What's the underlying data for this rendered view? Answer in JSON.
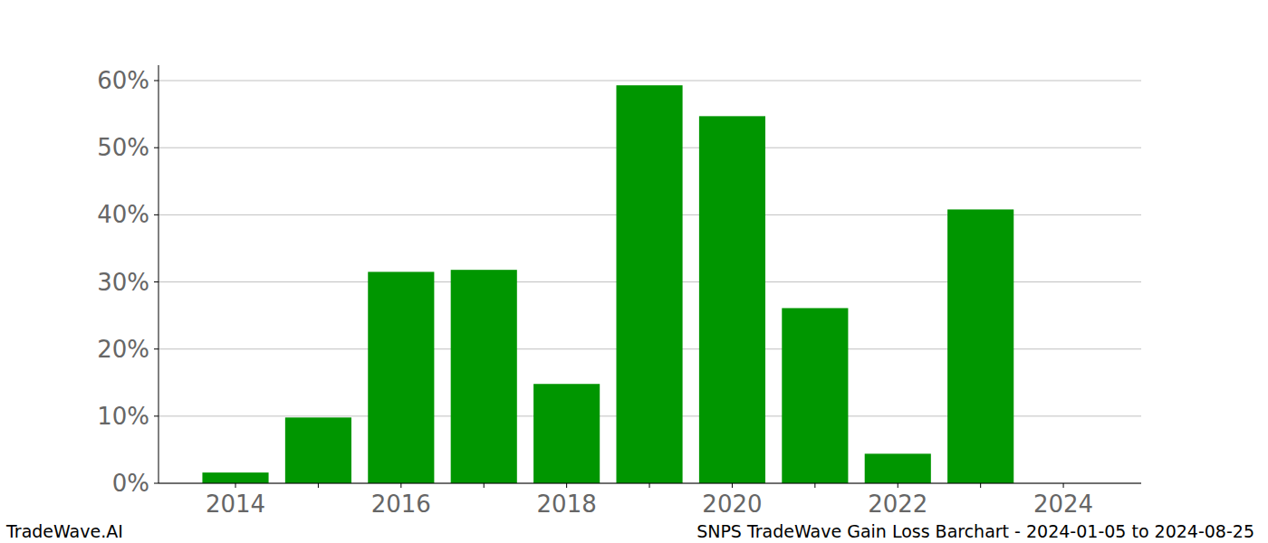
{
  "chart_data": {
    "type": "bar",
    "title": "SNPS TradeWave Gain Loss Barchart - 2024-01-05 to 2024-08-25",
    "source": "TradeWave.AI",
    "categories": [
      "2014",
      null,
      "2016",
      null,
      "2018",
      null,
      "2020",
      null,
      "2022",
      null,
      "2024"
    ],
    "values": [
      1.6,
      9.8,
      31.5,
      31.8,
      14.8,
      59.3,
      54.7,
      26.1,
      4.4,
      40.8,
      null
    ],
    "color": "#009600",
    "ylim": [
      0,
      62.3
    ],
    "yticks": [
      {
        "value": 0,
        "label": "0%"
      },
      {
        "value": 10,
        "label": "10%"
      },
      {
        "value": 20,
        "label": "20%"
      },
      {
        "value": 30,
        "label": "30%"
      },
      {
        "value": 40,
        "label": "40%"
      },
      {
        "value": 50,
        "label": "50%"
      },
      {
        "value": 60,
        "label": "60%"
      }
    ],
    "grid": true
  }
}
